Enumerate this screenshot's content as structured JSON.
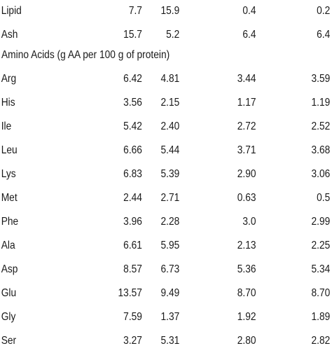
{
  "proximate": [
    {
      "name": "Lipid",
      "v1": "7.7",
      "v2": "15.9",
      "v3": "0.4",
      "v4": "0.2"
    },
    {
      "name": "Ash",
      "v1": "15.7",
      "v2": "5.2",
      "v3": "6.4",
      "v4": "6.4"
    }
  ],
  "section_heading": "Amino Acids (g AA per 100 g of protein)",
  "amino_acids": [
    {
      "name": "Arg",
      "v1": "6.42",
      "v2": "4.81",
      "v3": "3.44",
      "v4": "3.59"
    },
    {
      "name": "His",
      "v1": "3.56",
      "v2": "2.15",
      "v3": "1.17",
      "v4": "1.19"
    },
    {
      "name": "Ile",
      "v1": "5.42",
      "v2": "2.40",
      "v3": "2.72",
      "v4": "2.52"
    },
    {
      "name": "Leu",
      "v1": "6.66",
      "v2": "5.44",
      "v3": "3.71",
      "v4": "3.68"
    },
    {
      "name": "Lys",
      "v1": "6.83",
      "v2": "5.39",
      "v3": "2.90",
      "v4": "3.06"
    },
    {
      "name": "Met",
      "v1": "2.44",
      "v2": "2.71",
      "v3": "0.63",
      "v4": "0.5"
    },
    {
      "name": "Phe",
      "v1": "3.96",
      "v2": "2.28",
      "v3": "3.0",
      "v4": "2.99"
    },
    {
      "name": "Ala",
      "v1": "6.61",
      "v2": "5.95",
      "v3": "2.13",
      "v4": "2.25"
    },
    {
      "name": "Asp",
      "v1": "8.57",
      "v2": "6.73",
      "v3": "5.36",
      "v4": "5.34"
    },
    {
      "name": "Glu",
      "v1": "13.57",
      "v2": "9.49",
      "v3": "8.70",
      "v4": "8.70"
    },
    {
      "name": "Gly",
      "v1": "7.59",
      "v2": "1.37",
      "v3": "1.92",
      "v4": "1.89"
    },
    {
      "name": "Ser",
      "v1": "3.27",
      "v2": "5.31",
      "v3": "2.80",
      "v4": "2.82"
    }
  ]
}
